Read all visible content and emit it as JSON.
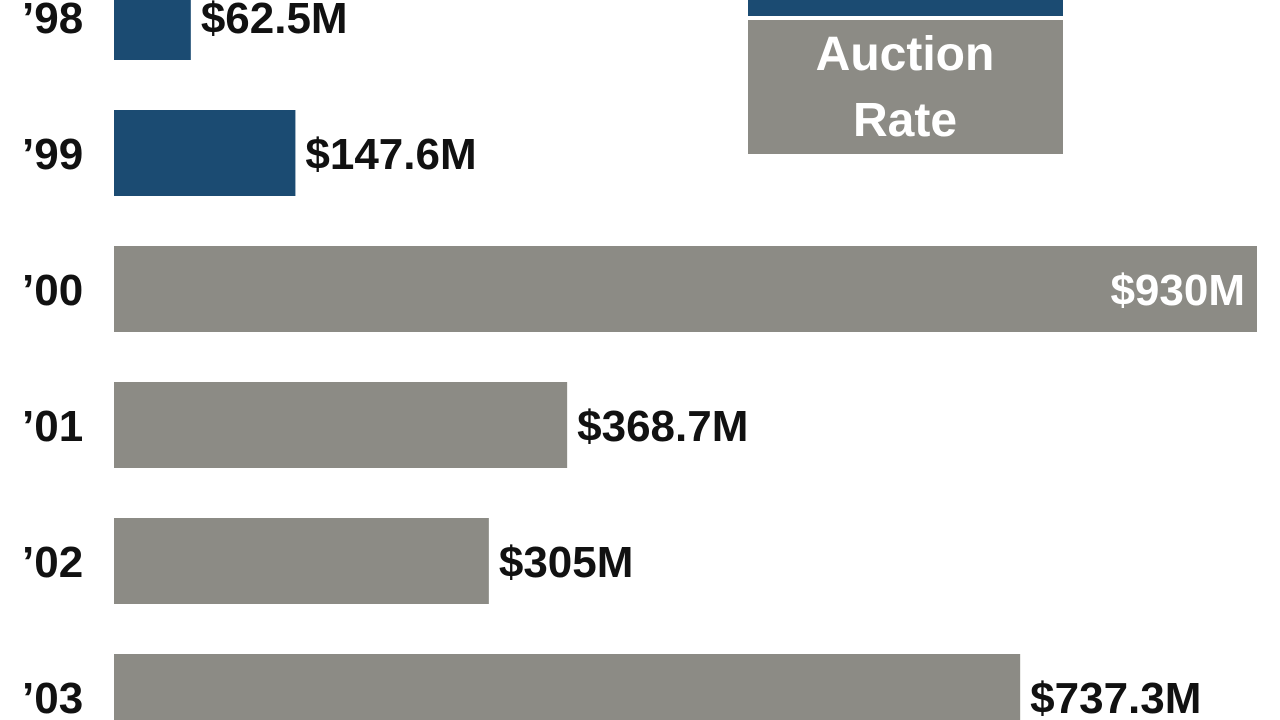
{
  "chart_data": {
    "type": "bar",
    "orientation": "horizontal",
    "categories": [
      "’98",
      "’99",
      "’00",
      "’01",
      "’02",
      "’03"
    ],
    "values": [
      62.5,
      147.6,
      930,
      368.7,
      305,
      737.3
    ],
    "value_labels": [
      "$62.5M",
      "$147.6M",
      "$930M",
      "$368.7M",
      "$305M",
      "$737.3M"
    ],
    "bar_types": [
      "fixed",
      "fixed",
      "auction",
      "auction",
      "auction",
      "auction"
    ],
    "unit": "$M",
    "xlim": [
      0,
      930
    ],
    "legend": {
      "position": "top-right",
      "auction_label_line1": "Auction",
      "auction_label_line2": "Rate"
    }
  },
  "colors": {
    "fixed": "#1b4b72",
    "auction": "#8c8b85",
    "label_outside": "#111111",
    "label_inside": "#ffffff",
    "background": "#ffffff"
  }
}
